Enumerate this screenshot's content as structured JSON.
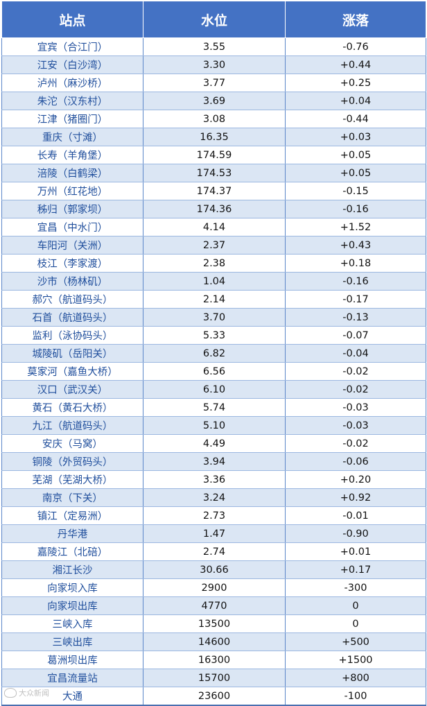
{
  "header": {
    "station": "站点",
    "level": "水位",
    "change": "涨落"
  },
  "rows": [
    {
      "station": "宜宾（合江门）",
      "level": "3.55",
      "change": "-0.76"
    },
    {
      "station": "江安（白沙湾）",
      "level": "3.30",
      "change": "+0.44"
    },
    {
      "station": "泸州（麻沙桥）",
      "level": "3.77",
      "change": "+0.25"
    },
    {
      "station": "朱沱（汉东村）",
      "level": "3.69",
      "change": "+0.04"
    },
    {
      "station": "江津（猪圈门）",
      "level": "3.08",
      "change": "-0.44"
    },
    {
      "station": "重庆（寸滩）",
      "level": "16.35",
      "change": "+0.03"
    },
    {
      "station": "长寿（羊角堡）",
      "level": "174.59",
      "change": "+0.05"
    },
    {
      "station": "涪陵（白鹤梁）",
      "level": "174.53",
      "change": "+0.05"
    },
    {
      "station": "万州（红花地）",
      "level": "174.37",
      "change": "-0.15"
    },
    {
      "station": "秭归（郭家坝）",
      "level": "174.36",
      "change": "-0.16"
    },
    {
      "station": "宜昌（中水门）",
      "level": "4.14",
      "change": "+1.52"
    },
    {
      "station": "车阳河（关洲）",
      "level": "2.37",
      "change": "+0.43"
    },
    {
      "station": "枝江（李家渡）",
      "level": "2.38",
      "change": "+0.18"
    },
    {
      "station": "沙市（杨林矶）",
      "level": "1.04",
      "change": "-0.16"
    },
    {
      "station": "郝穴（航道码头）",
      "level": "2.14",
      "change": "-0.17"
    },
    {
      "station": "石首（航道码头）",
      "level": "3.70",
      "change": "-0.13"
    },
    {
      "station": "监利（泳协码头）",
      "level": "5.33",
      "change": "-0.07"
    },
    {
      "station": "城陵矶（岳阳关）",
      "level": "6.82",
      "change": "-0.04"
    },
    {
      "station": "莫家河（嘉鱼大桥）",
      "level": "6.56",
      "change": "-0.02"
    },
    {
      "station": "汉口（武汉关）",
      "level": "6.10",
      "change": "-0.02"
    },
    {
      "station": "黄石（黄石大桥）",
      "level": "5.74",
      "change": "-0.03"
    },
    {
      "station": "九江（航道码头）",
      "level": "5.10",
      "change": "-0.03"
    },
    {
      "station": "安庆（马窝）",
      "level": "4.49",
      "change": "-0.02"
    },
    {
      "station": "铜陵（外贸码头）",
      "level": "3.94",
      "change": "-0.06"
    },
    {
      "station": "芜湖（芜湖大桥）",
      "level": "3.36",
      "change": "+0.20"
    },
    {
      "station": "南京（下关）",
      "level": "3.24",
      "change": "+0.92"
    },
    {
      "station": "镇江（定易洲）",
      "level": "2.73",
      "change": "-0.01"
    },
    {
      "station": "丹华港",
      "level": "1.47",
      "change": "-0.90"
    },
    {
      "station": "嘉陵江（北碚）",
      "level": "2.74",
      "change": "+0.01"
    },
    {
      "station": "湘江长沙",
      "level": "30.66",
      "change": "+0.17"
    },
    {
      "station": "向家坝入库",
      "level": "2900",
      "change": "-300"
    },
    {
      "station": "向家坝出库",
      "level": "4770",
      "change": "0"
    },
    {
      "station": "三峡入库",
      "level": "13500",
      "change": "0"
    },
    {
      "station": "三峡出库",
      "level": "14600",
      "change": "+500"
    },
    {
      "station": "葛洲坝出库",
      "level": "16300",
      "change": "+1500"
    },
    {
      "station": "宜昌流量站",
      "level": "15700",
      "change": "+800"
    },
    {
      "station": "大通",
      "level": "23600",
      "change": "-100"
    }
  ],
  "watermark": {
    "text": "大众新闻"
  }
}
